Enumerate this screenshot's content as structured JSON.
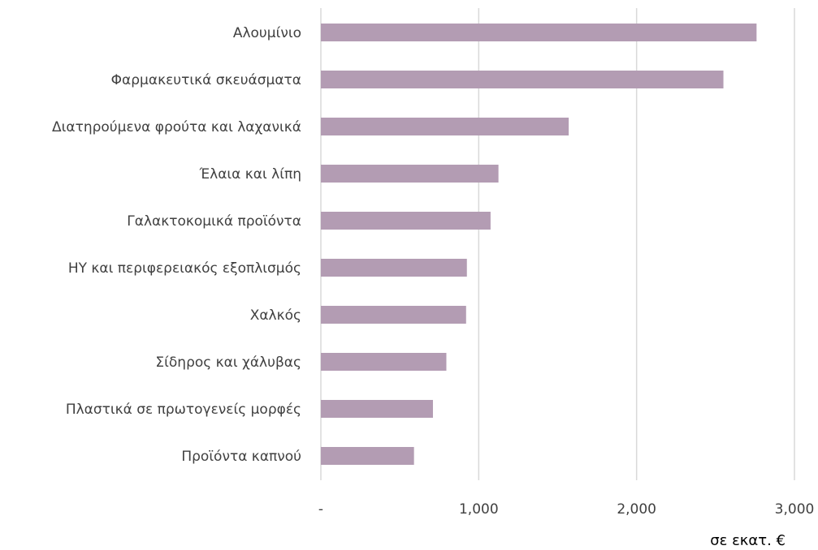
{
  "chart_data": {
    "type": "bar",
    "orientation": "horizontal",
    "categories": [
      "Αλουμίνιο",
      "Φαρμακευτικά σκευάσματα",
      "Διατηρούμενα φρούτα και λαχανικά",
      "Έλαια και λίπη",
      "Γαλακτοκομικά προϊόντα",
      "ΗΥ και περιφερειακός εξοπλισμός",
      "Χαλκός",
      "Σίδηρος και χάλυβας",
      "Πλαστικά σε πρωτογενείς μορφές",
      "Προϊόντα καπνού"
    ],
    "values": [
      2760,
      2550,
      1570,
      1125,
      1075,
      925,
      920,
      795,
      710,
      590
    ],
    "xlim": [
      0,
      3000
    ],
    "xticks": [
      0,
      1000,
      2000,
      3000
    ],
    "xtick_labels": [
      "-",
      "1,000",
      "2,000",
      "3,000"
    ],
    "unit_label": "σε εκατ. €",
    "grid": "vertical",
    "bar_color": "#b39cb3",
    "gridline_color": "#d9d9d9"
  }
}
